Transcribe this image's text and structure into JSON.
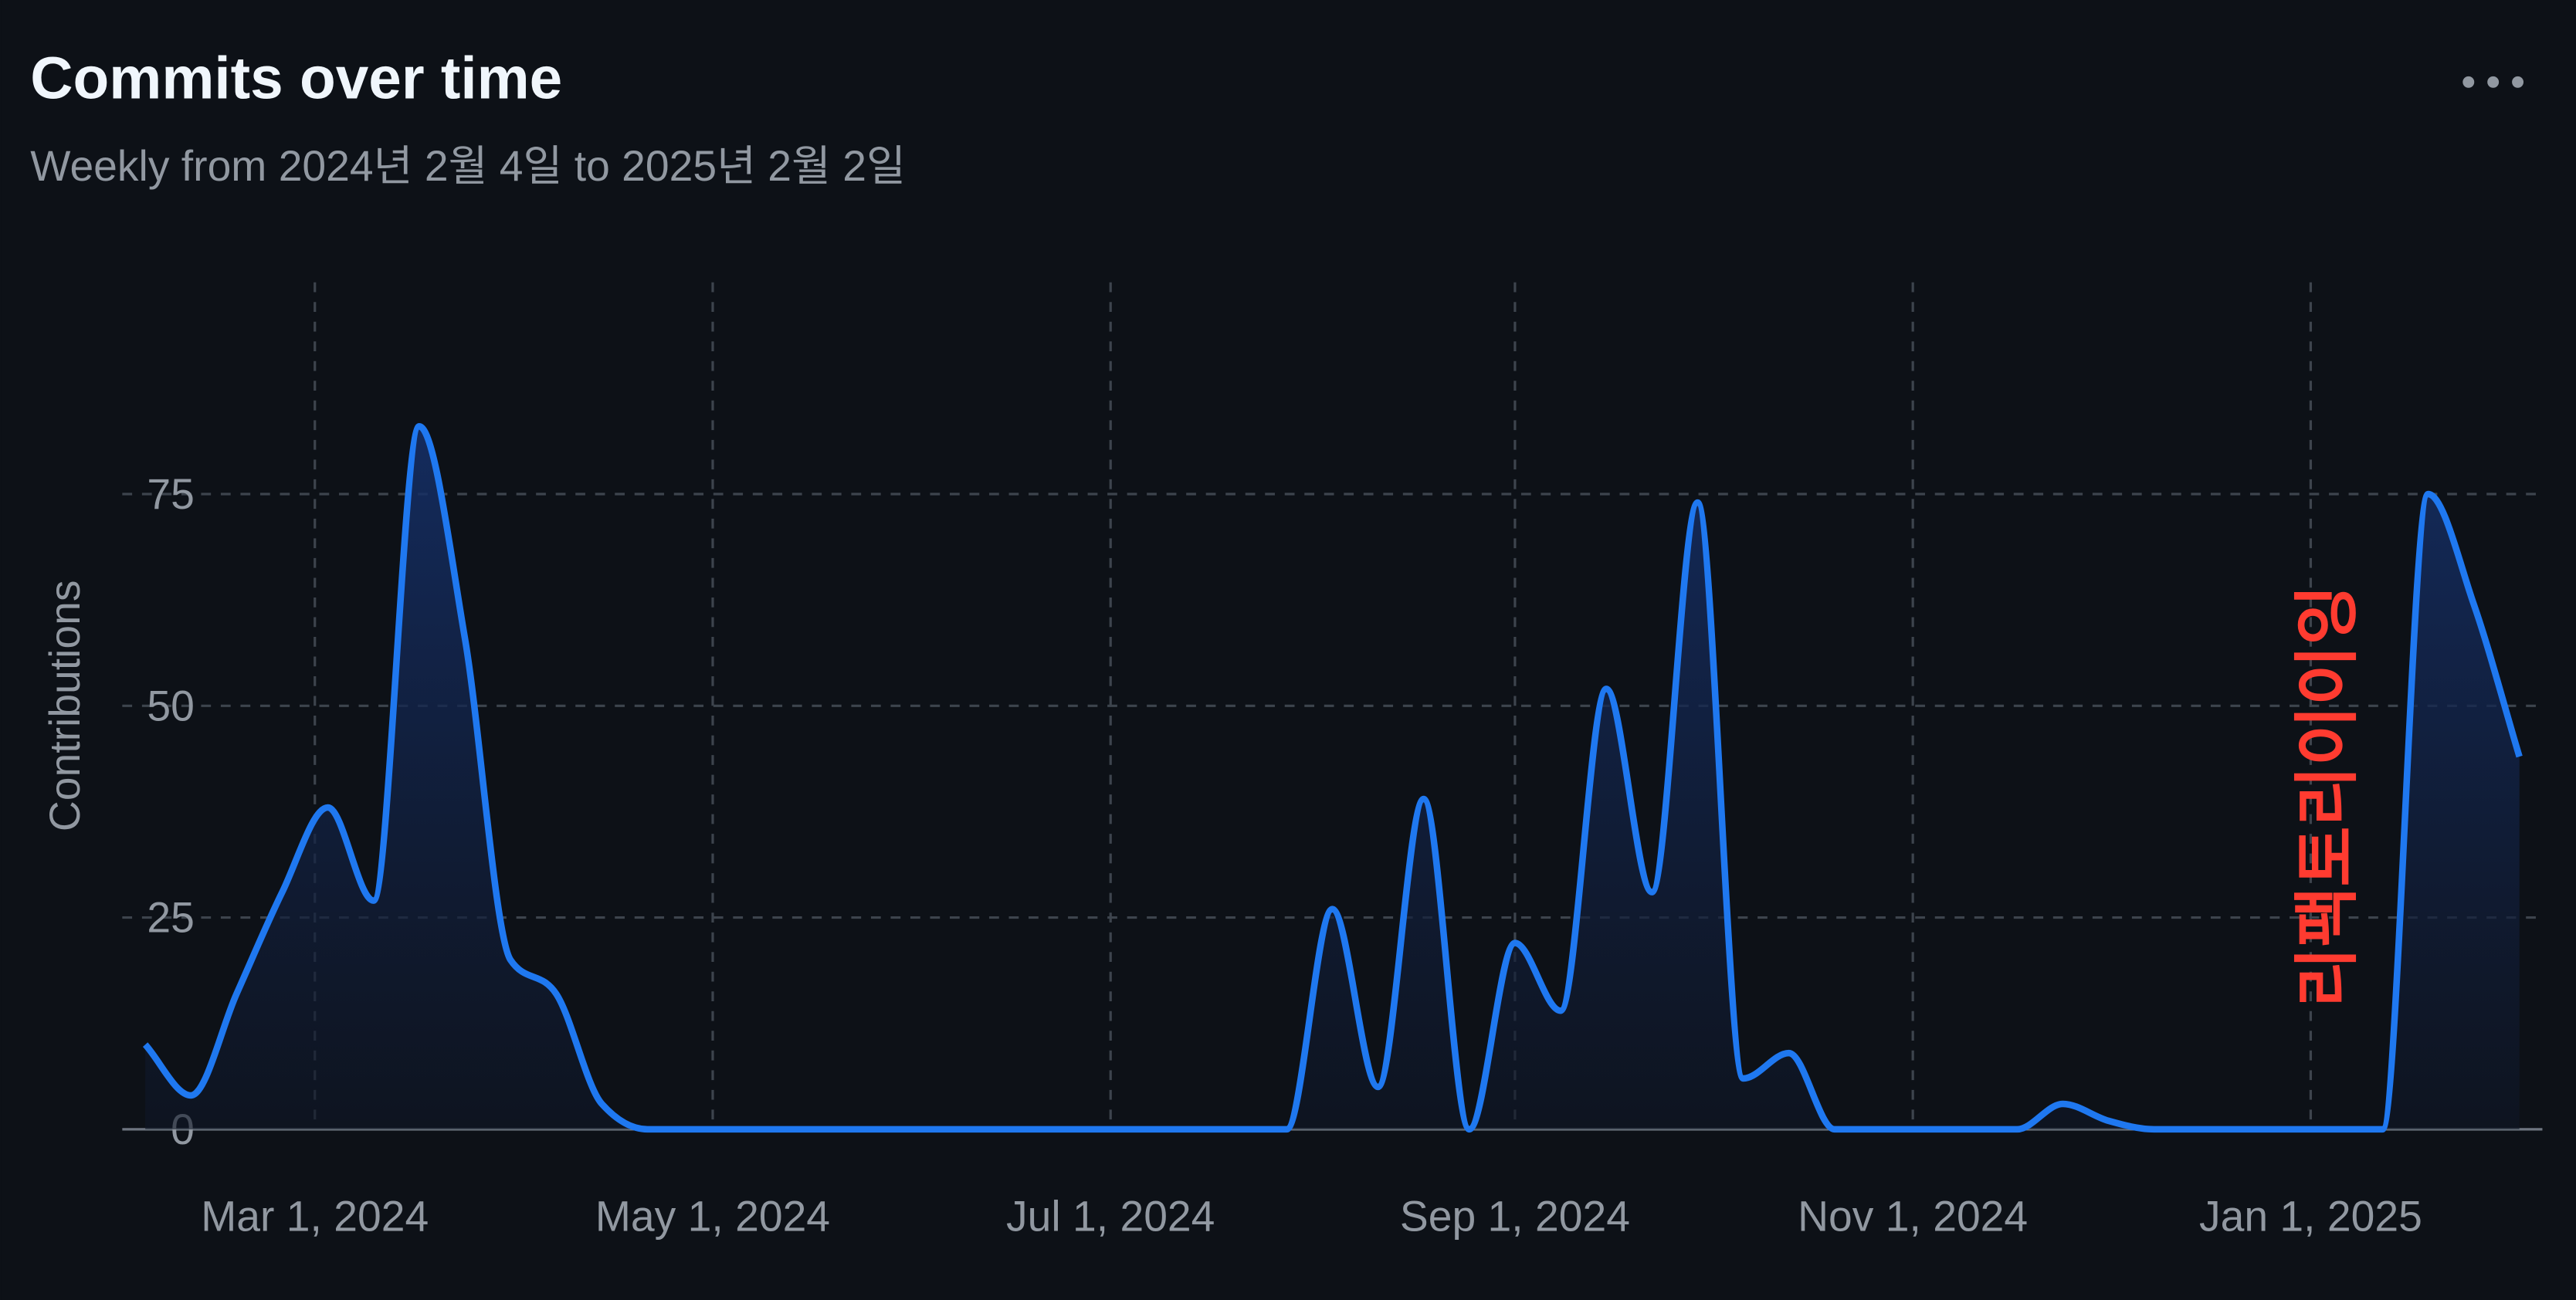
{
  "chart_data": {
    "type": "line",
    "title": "Commits over time",
    "subtitle": "Weekly from 2024년 2월 4일 to 2025년 2월 2일",
    "y_label": "Contributions",
    "annotation": "리팩토리이이잉",
    "x": [
      "2024-02-04",
      "2024-02-11",
      "2024-02-18",
      "2024-02-25",
      "2024-03-03",
      "2024-03-10",
      "2024-03-17",
      "2024-03-24",
      "2024-03-31",
      "2024-04-07",
      "2024-04-14",
      "2024-04-21",
      "2024-04-28",
      "2024-05-05",
      "2024-05-12",
      "2024-05-19",
      "2024-05-26",
      "2024-06-02",
      "2024-06-09",
      "2024-06-16",
      "2024-06-23",
      "2024-06-30",
      "2024-07-07",
      "2024-07-14",
      "2024-07-21",
      "2024-07-28",
      "2024-08-04",
      "2024-08-11",
      "2024-08-18",
      "2024-08-25",
      "2024-09-01",
      "2024-09-08",
      "2024-09-15",
      "2024-09-22",
      "2024-09-29",
      "2024-10-06",
      "2024-10-13",
      "2024-10-20",
      "2024-10-27",
      "2024-11-03",
      "2024-11-10",
      "2024-11-17",
      "2024-11-24",
      "2024-12-01",
      "2024-12-08",
      "2024-12-15",
      "2024-12-22",
      "2024-12-29",
      "2025-01-05",
      "2025-01-12",
      "2025-01-19",
      "2025-01-26",
      "2025-02-02"
    ],
    "series": [
      {
        "name": "Contributions",
        "color": "#1f78f0",
        "values": [
          10,
          4,
          16,
          28,
          38,
          27,
          83,
          58,
          20,
          16,
          3,
          0,
          0,
          0,
          0,
          0,
          0,
          0,
          0,
          0,
          0,
          0,
          0,
          0,
          0,
          0,
          26,
          5,
          39,
          0,
          22,
          14,
          52,
          28,
          74,
          6,
          9,
          0,
          0,
          0,
          0,
          0,
          3,
          1,
          0,
          0,
          0,
          0,
          0,
          0,
          75,
          62,
          44
        ]
      }
    ],
    "xlim": [
      "2024-02-04",
      "2025-02-02"
    ],
    "xticks": [
      {
        "value": "2024-03-01",
        "label": "Mar 1, 2024"
      },
      {
        "value": "2024-05-01",
        "label": "May 1, 2024"
      },
      {
        "value": "2024-07-01",
        "label": "Jul 1, 2024"
      },
      {
        "value": "2024-09-01",
        "label": "Sep 1, 2024"
      },
      {
        "value": "2024-11-01",
        "label": "Nov 1, 2024"
      },
      {
        "value": "2025-01-01",
        "label": "Jan 1, 2025"
      }
    ],
    "ylim": [
      0,
      100
    ],
    "yticks": [
      0,
      25,
      50,
      75
    ],
    "grid": true
  }
}
